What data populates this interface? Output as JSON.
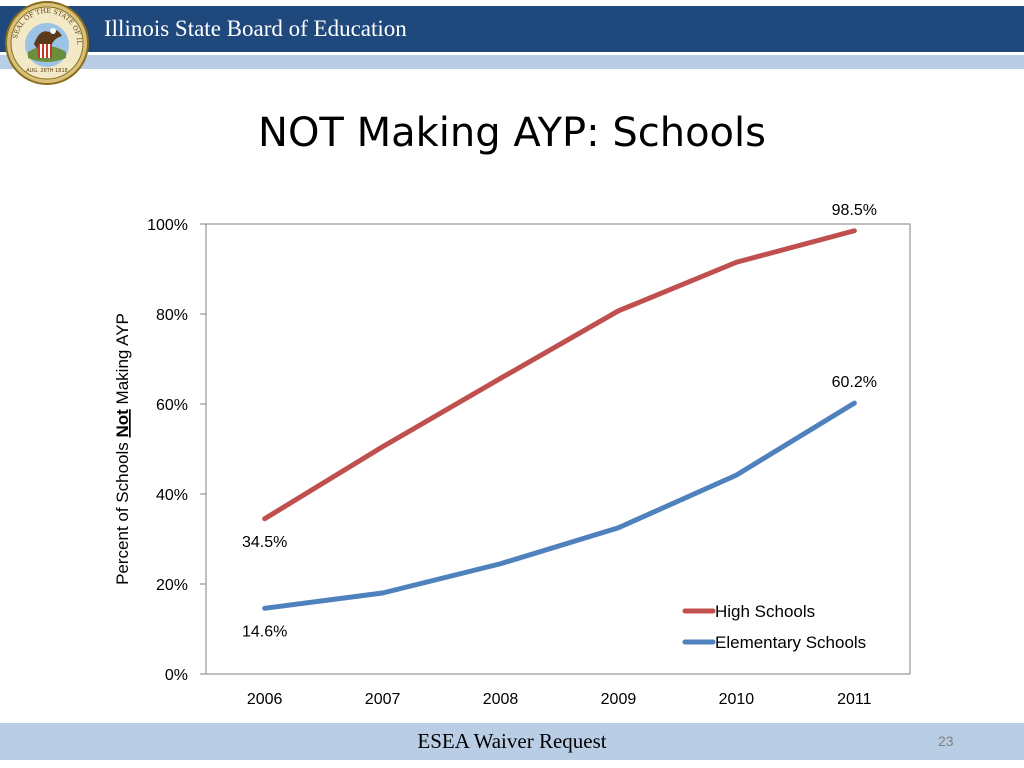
{
  "header": {
    "title": "Illinois State Board of Education",
    "seal_text": "SEAL OF THE STATE OF ILLINOIS",
    "seal_date": "AUG. 26TH 1818",
    "bar_color": "#1f497d",
    "stripe_color": "#b9cde5"
  },
  "slide_title": "NOT Making AYP: Schools",
  "chart_data": {
    "type": "line",
    "categories": [
      "2006",
      "2007",
      "2008",
      "2009",
      "2010",
      "2011"
    ],
    "series": [
      {
        "name": "High Schools",
        "color": "#c0504d",
        "values": [
          34.5,
          50.5,
          65.7,
          80.7,
          91.5,
          98.5
        ]
      },
      {
        "name": "Elementary Schools",
        "color": "#4f81bd",
        "values": [
          14.6,
          18.0,
          24.5,
          32.5,
          44.2,
          60.2
        ]
      }
    ],
    "data_labels": [
      {
        "series": 0,
        "index": 0,
        "text": "34.5%"
      },
      {
        "series": 0,
        "index": 5,
        "text": "98.5%"
      },
      {
        "series": 1,
        "index": 0,
        "text": "14.6%"
      },
      {
        "series": 1,
        "index": 5,
        "text": "60.2%"
      }
    ],
    "ylabel_parts": [
      "Percent of Schools ",
      "Not",
      " Making AYP"
    ],
    "yticks": [
      "0%",
      "20%",
      "40%",
      "60%",
      "80%",
      "100%"
    ],
    "ylim": [
      0,
      100
    ],
    "grid": false,
    "legend": "bottom-right"
  },
  "footer": {
    "text": "ESEA Waiver Request",
    "page_number": "23",
    "bar_color": "#b9cde5"
  }
}
